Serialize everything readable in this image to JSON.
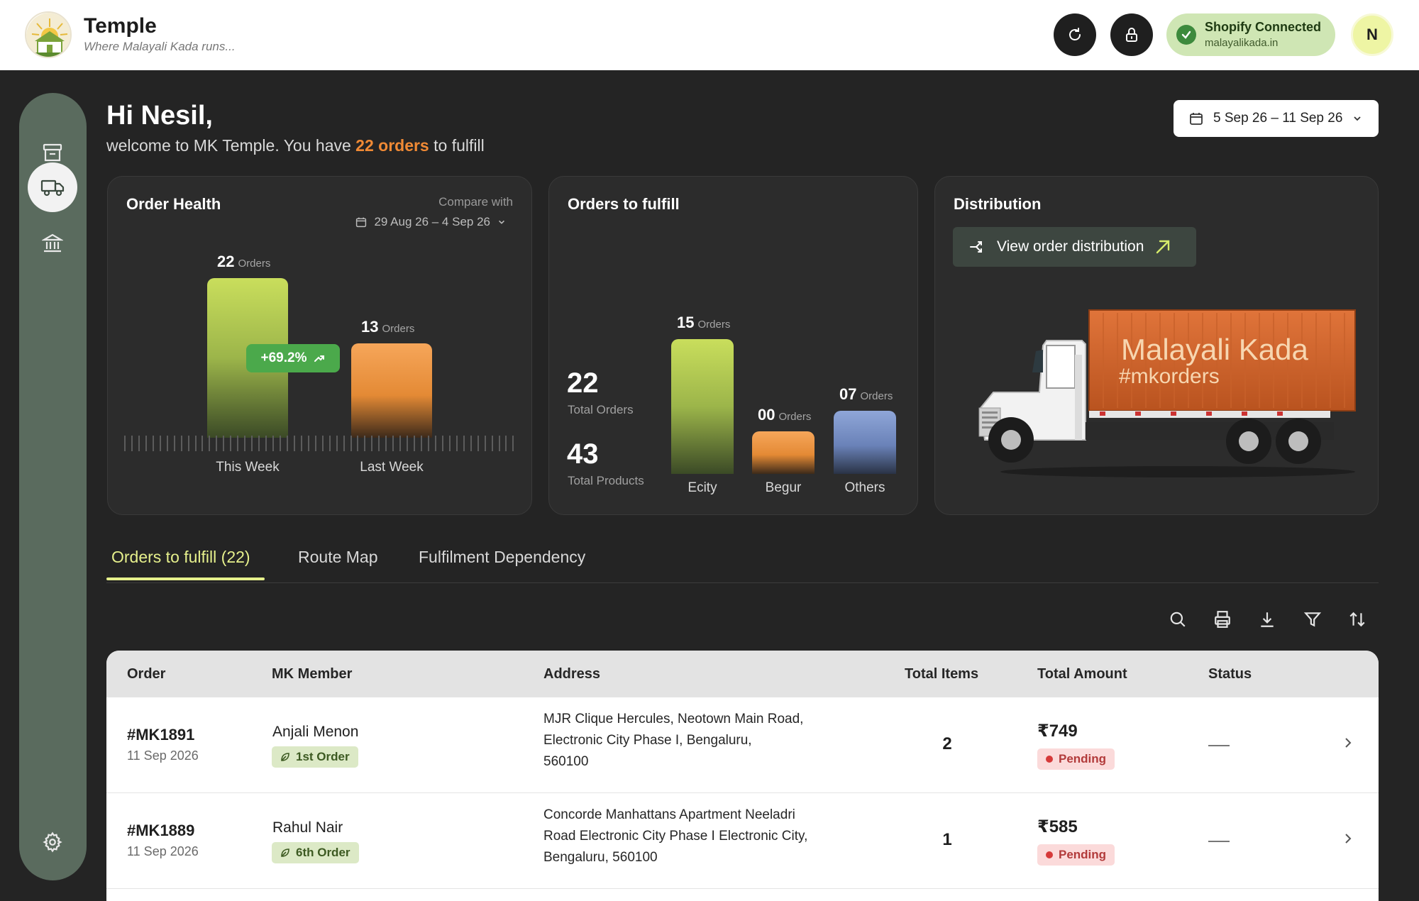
{
  "header": {
    "brand_title": "Temple",
    "brand_subtitle": "Where Malayali Kada runs...",
    "refresh_icon": "refresh-icon",
    "lock_icon": "lock-icon",
    "shopify_status": "Shopify Connected",
    "shopify_domain": "malayalikada.in",
    "avatar_initial": "N"
  },
  "sidebar": {
    "items": [
      {
        "icon": "archive-icon",
        "active": false
      },
      {
        "icon": "truck-icon",
        "active": true
      },
      {
        "icon": "bank-icon",
        "active": false
      },
      {
        "icon": "gear-icon",
        "active": false
      }
    ]
  },
  "greeting": {
    "title": "Hi Nesil,",
    "prefix": "welcome to MK Temple. You have ",
    "orders_highlight": "22 orders",
    "suffix": " to fulfill"
  },
  "date_range": "5 Sep 26 – 11 Sep 26",
  "order_health": {
    "title": "Order Health",
    "compare_label": "Compare with",
    "compare_range": "29 Aug 26 – 4 Sep 26",
    "change": "+69.2%",
    "unit": "Orders",
    "chart_data": {
      "type": "bar",
      "categories": [
        "This Week",
        "Last Week"
      ],
      "values": [
        22,
        13
      ],
      "value_labels": [
        "22",
        "13"
      ],
      "ylim": [
        0,
        22
      ]
    }
  },
  "orders_to_fulfill": {
    "title": "Orders to fulfill",
    "total_orders": "22",
    "total_orders_label": "Total Orders",
    "total_products": "43",
    "total_products_label": "Total Products",
    "unit": "Orders",
    "chart_data": {
      "type": "bar",
      "categories": [
        "Ecity",
        "Begur",
        "Others"
      ],
      "values": [
        15,
        0,
        7
      ],
      "value_labels": [
        "15",
        "00",
        "07"
      ],
      "ylim": [
        0,
        15
      ]
    }
  },
  "distribution": {
    "title": "Distribution",
    "button_label": "View order distribution",
    "truck_text_1": "Malayali Kada",
    "truck_text_2": "#mkorders"
  },
  "tabs": [
    {
      "label": "Orders to fulfill (22)",
      "active": true
    },
    {
      "label": "Route Map",
      "active": false
    },
    {
      "label": "Fulfilment Dependency",
      "active": false
    }
  ],
  "toolbar": [
    "search-icon",
    "print-icon",
    "download-icon",
    "filter-icon",
    "sort-icon"
  ],
  "table": {
    "columns": [
      "Order",
      "MK Member",
      "Address",
      "Total Items",
      "Total Amount",
      "Status"
    ],
    "rows": [
      {
        "order": "#MK1891",
        "date": "11 Sep 2026",
        "member": "Anjali Menon",
        "badge": "1st Order",
        "address": [
          "MJR Clique Hercules, Neotown Main Road,",
          "Electronic City Phase I, Bengaluru,",
          "560100"
        ],
        "items": "2",
        "amount": "₹749",
        "payment": "Pending",
        "status": "—"
      },
      {
        "order": "#MK1889",
        "date": "11 Sep 2026",
        "member": "Rahul Nair",
        "badge": "6th Order",
        "address": [
          "Concorde Manhattans Apartment Neeladri",
          "Road Electronic City Phase I Electronic City,",
          "Bengaluru, 560100"
        ],
        "items": "1",
        "amount": "₹585",
        "payment": "Pending",
        "status": "—"
      }
    ]
  }
}
